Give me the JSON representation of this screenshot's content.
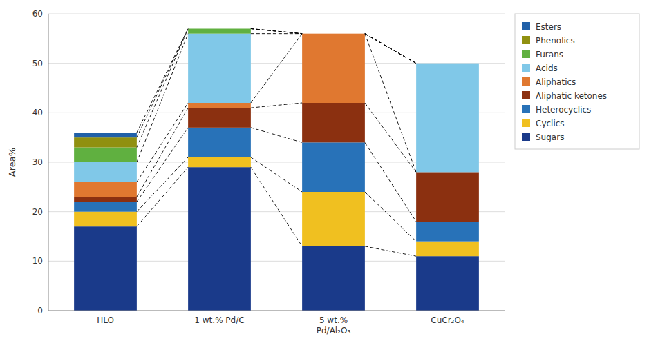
{
  "chart_data": {
    "type": "bar",
    "stacked": true,
    "categories": [
      "HLO",
      "1 wt.% Pd/C",
      "5 wt.%\nPd/Al₂O₃",
      "CuCr₂O₄"
    ],
    "ylabel": "Area%",
    "ylim": [
      0,
      60
    ],
    "yticks": [
      0,
      10,
      20,
      30,
      40,
      50,
      60
    ],
    "grid": true,
    "legend": "right",
    "series": [
      {
        "name": "Sugars",
        "color": "#1a3a8a",
        "values": [
          17,
          29,
          13,
          11
        ]
      },
      {
        "name": "Cyclics",
        "color": "#f0c020",
        "values": [
          3,
          2,
          11,
          3
        ]
      },
      {
        "name": "Heterocyclics",
        "color": "#2872b8",
        "values": [
          2,
          6,
          10,
          4
        ]
      },
      {
        "name": "Aliphatic ketones",
        "color": "#8b3010",
        "values": [
          1,
          4,
          8,
          10
        ]
      },
      {
        "name": "Aliphatics",
        "color": "#e07830",
        "values": [
          3,
          1,
          14,
          0
        ]
      },
      {
        "name": "Acids",
        "color": "#80c8e8",
        "values": [
          4,
          14,
          0,
          22
        ]
      },
      {
        "name": "Furans",
        "color": "#60b040",
        "values": [
          3,
          1,
          0,
          0
        ]
      },
      {
        "name": "Phenolics",
        "color": "#909010",
        "values": [
          2,
          0,
          0,
          0
        ]
      },
      {
        "name": "Esters",
        "color": "#2060a8",
        "values": [
          1,
          0,
          0,
          0
        ]
      }
    ]
  }
}
